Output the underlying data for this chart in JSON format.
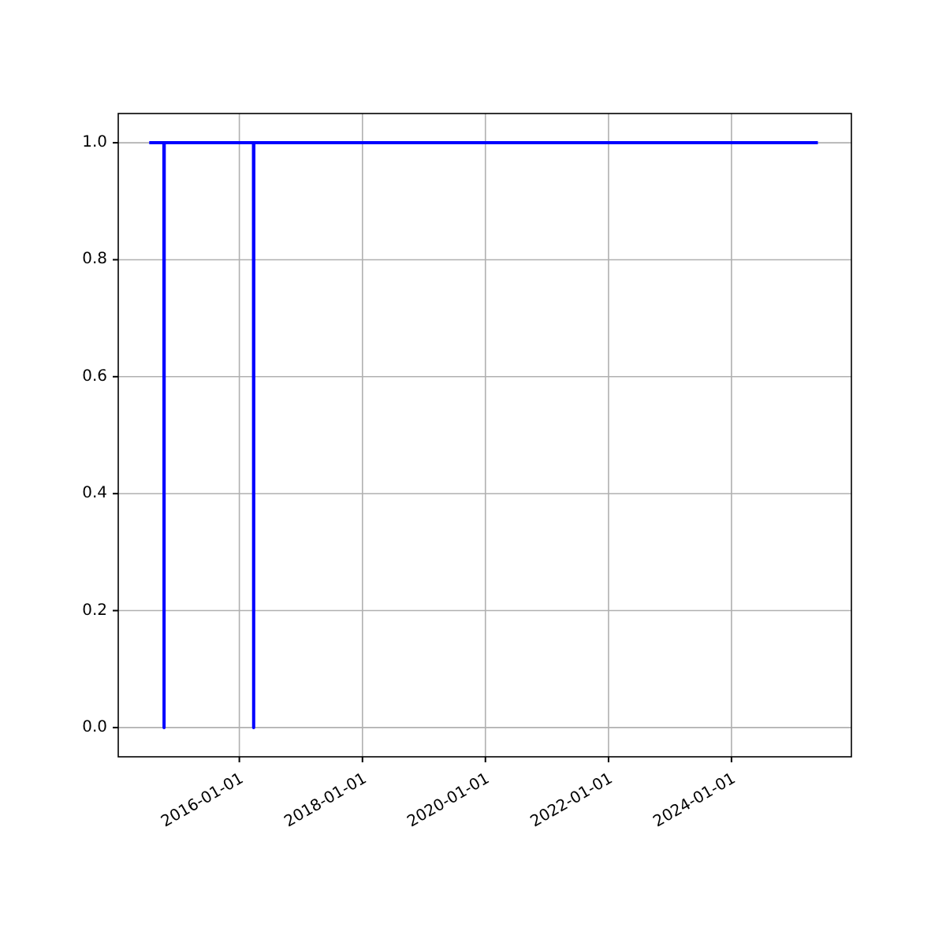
{
  "chart_data": {
    "type": "line",
    "x": [
      "2014-07-15",
      "2014-10-10",
      "2014-10-11",
      "2014-10-12",
      "2016-03-25",
      "2016-03-26",
      "2016-03-27",
      "2025-05-28"
    ],
    "series": [
      {
        "color": "#0000ff",
        "values": [
          1,
          1,
          0,
          1,
          1,
          0,
          1,
          1
        ]
      }
    ],
    "xlim": [
      "2014-01-12",
      "2025-12-13"
    ],
    "xticks": [
      "2016-01-01",
      "2018-01-01",
      "2020-01-01",
      "2022-01-01",
      "2024-01-01"
    ],
    "ylim": [
      -0.05,
      1.05
    ],
    "yticks": [
      {
        "value": 0,
        "label": "0.0"
      },
      {
        "value": 0.2,
        "label": "0.2"
      },
      {
        "value": 0.4,
        "label": "0.4"
      },
      {
        "value": 0.6,
        "label": "0.6"
      },
      {
        "value": 0.8,
        "label": "0.8"
      },
      {
        "value": 1,
        "label": "1.0"
      }
    ],
    "grid": true,
    "marker": "none",
    "line_style": "solid"
  }
}
